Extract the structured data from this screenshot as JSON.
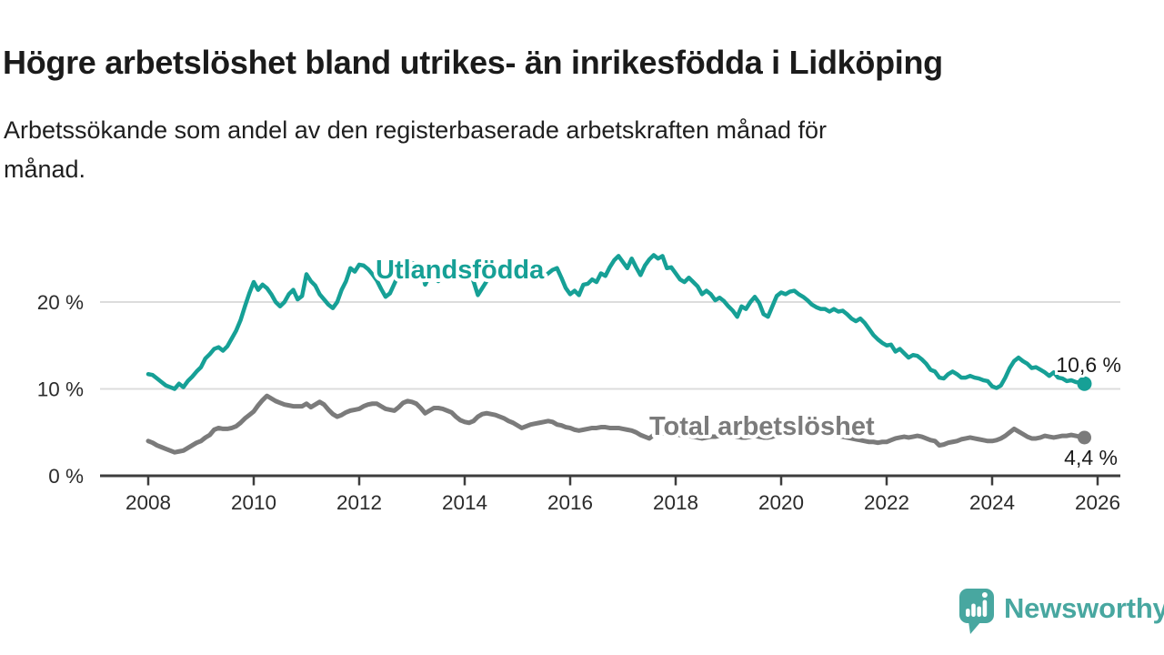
{
  "header": {
    "title": "Högre arbetslöshet bland utrikes- än inrikesfödda i Lidköping",
    "subtitle": "Arbetssökande som andel av den registerbaserade arbetskraften månad för månad.",
    "subtitle_line1": "Arbetssökande som andel av den registerbaserade arbetskraften månad för",
    "subtitle_line2": "månad."
  },
  "branding": {
    "logo_text": "Newsworthy"
  },
  "colors": {
    "background": "#ffffff",
    "series_foreign_born": "#16a096",
    "series_total": "#7b7b7b",
    "grid": "#dcdcdc",
    "axis": "#3d3d3d",
    "tick_label": "#2b2b2b",
    "annotation": "#1b1b1b",
    "logo": "#48a7a0"
  },
  "chart_data": {
    "type": "line",
    "title": "Högre arbetslöshet bland utrikes- än inrikesfödda i Lidköping",
    "subtitle": "Arbetssökande som andel av den registerbaserade arbetskraften månad för månad.",
    "xlabel": "",
    "ylabel": "",
    "frequency": "monthly",
    "start_month": "2008-01",
    "end_month": "2025-10",
    "x_ticks": [
      2008,
      2010,
      2012,
      2014,
      2016,
      2018,
      2020,
      2022,
      2024,
      2026
    ],
    "x_tick_labels": [
      "2008",
      "2010",
      "2012",
      "2014",
      "2016",
      "2018",
      "2020",
      "2022",
      "2024",
      "2026"
    ],
    "y_ticks": [
      0,
      10,
      20
    ],
    "y_tick_labels": [
      "0 %",
      "10 %",
      "20 %"
    ],
    "ylim": [
      0,
      26.5
    ],
    "xlim": [
      2007.09,
      2026.43
    ],
    "grid": "horizontal",
    "legend_position": "inline-labels",
    "series": [
      {
        "name": "Utlandsfödda",
        "color": "#16a096",
        "end_label": "10,6 %",
        "end_value": 10.6,
        "values": [
          11.7,
          11.6,
          11.2,
          10.8,
          10.4,
          10.2,
          10.0,
          10.6,
          10.2,
          10.9,
          11.4,
          12.0,
          12.5,
          13.5,
          14.0,
          14.6,
          14.8,
          14.4,
          14.9,
          15.8,
          16.7,
          17.9,
          19.5,
          21.0,
          22.3,
          21.4,
          22.0,
          21.6,
          20.9,
          20.0,
          19.5,
          20.0,
          20.9,
          21.4,
          20.3,
          20.7,
          23.2,
          22.4,
          21.9,
          20.9,
          20.3,
          19.7,
          19.3,
          20.0,
          21.4,
          22.4,
          23.9,
          23.5,
          24.3,
          24.2,
          23.8,
          23.2,
          22.5,
          21.5,
          20.6,
          21.0,
          22.1,
          23.2,
          24.1,
          24.4,
          24.5,
          24.4,
          24.3,
          22.0,
          23.0,
          23.6,
          22.4,
          22.9,
          23.4,
          23.8,
          24.1,
          24.3,
          24.2,
          23.6,
          22.4,
          20.8,
          21.6,
          22.4,
          23.0,
          23.4,
          23.6,
          23.8,
          24.0,
          24.1,
          24.3,
          24.4,
          24.2,
          23.9,
          23.6,
          23.2,
          22.9,
          23.3,
          23.7,
          23.9,
          22.8,
          21.6,
          20.9,
          21.3,
          20.8,
          22.0,
          22.1,
          22.6,
          22.3,
          23.3,
          23.0,
          24.0,
          24.8,
          25.3,
          24.6,
          23.9,
          25.0,
          24.0,
          23.1,
          24.2,
          24.9,
          25.4,
          25.0,
          25.3,
          23.9,
          24.0,
          23.3,
          22.6,
          22.3,
          22.8,
          22.3,
          21.8,
          20.9,
          21.3,
          20.9,
          20.2,
          20.5,
          20.1,
          19.5,
          19.0,
          18.3,
          19.5,
          19.2,
          20.0,
          20.6,
          19.9,
          18.6,
          18.3,
          19.5,
          20.7,
          21.1,
          20.9,
          21.2,
          21.3,
          20.9,
          20.6,
          20.2,
          19.7,
          19.4,
          19.2,
          19.2,
          18.9,
          19.2,
          18.9,
          19.0,
          18.6,
          18.1,
          17.8,
          18.1,
          17.6,
          16.9,
          16.2,
          15.7,
          15.3,
          15.0,
          15.1,
          14.3,
          14.6,
          14.1,
          13.6,
          13.9,
          13.8,
          13.4,
          12.9,
          12.2,
          12.0,
          11.3,
          11.2,
          11.7,
          12.0,
          11.7,
          11.3,
          11.3,
          11.5,
          11.3,
          11.2,
          11.0,
          10.9,
          10.3,
          10.1,
          10.4,
          11.3,
          12.4,
          13.2,
          13.6,
          13.2,
          12.9,
          12.4,
          12.5,
          12.2,
          11.9,
          11.5,
          11.9,
          11.3,
          11.2,
          10.9,
          11.0,
          10.8,
          10.7,
          10.6
        ]
      },
      {
        "name": "Total arbetslöshet",
        "color": "#7b7b7b",
        "end_label": "4,4 %",
        "end_value": 4.4,
        "values": [
          4.0,
          3.8,
          3.5,
          3.3,
          3.1,
          2.9,
          2.7,
          2.8,
          2.9,
          3.2,
          3.5,
          3.8,
          4.0,
          4.4,
          4.7,
          5.3,
          5.5,
          5.4,
          5.4,
          5.5,
          5.7,
          6.1,
          6.6,
          7.0,
          7.4,
          8.1,
          8.7,
          9.2,
          8.9,
          8.6,
          8.4,
          8.2,
          8.1,
          8.0,
          8.0,
          8.0,
          8.3,
          7.9,
          8.2,
          8.5,
          8.2,
          7.6,
          7.1,
          6.8,
          7.0,
          7.3,
          7.5,
          7.6,
          7.7,
          8.0,
          8.2,
          8.3,
          8.3,
          8.0,
          7.7,
          7.6,
          7.5,
          7.9,
          8.4,
          8.6,
          8.5,
          8.3,
          7.8,
          7.2,
          7.5,
          7.8,
          7.8,
          7.7,
          7.5,
          7.3,
          6.8,
          6.4,
          6.2,
          6.1,
          6.3,
          6.8,
          7.1,
          7.2,
          7.1,
          7.0,
          6.8,
          6.6,
          6.3,
          6.1,
          5.8,
          5.5,
          5.7,
          5.9,
          6.0,
          6.1,
          6.2,
          6.3,
          6.2,
          5.9,
          5.8,
          5.6,
          5.5,
          5.3,
          5.2,
          5.3,
          5.4,
          5.5,
          5.5,
          5.6,
          5.6,
          5.5,
          5.5,
          5.5,
          5.4,
          5.3,
          5.2,
          5.0,
          4.7,
          4.5,
          4.3,
          4.7,
          4.8,
          4.9,
          4.9,
          4.9,
          4.8,
          4.7,
          4.6,
          4.6,
          4.5,
          4.4,
          4.3,
          4.4,
          4.5,
          4.5,
          4.6,
          4.7,
          4.7,
          4.6,
          4.5,
          4.4,
          4.4,
          4.5,
          4.6,
          4.5,
          4.4,
          4.4,
          4.5,
          4.7,
          4.9,
          5.1,
          5.3,
          5.5,
          5.6,
          5.5,
          5.4,
          5.3,
          5.1,
          5.0,
          4.9,
          4.8,
          4.7,
          4.6,
          4.5,
          4.4,
          4.3,
          4.2,
          4.1,
          4.0,
          3.9,
          3.9,
          3.8,
          3.9,
          3.9,
          4.1,
          4.3,
          4.4,
          4.5,
          4.4,
          4.5,
          4.6,
          4.5,
          4.3,
          4.1,
          4.0,
          3.5,
          3.6,
          3.8,
          3.9,
          4.0,
          4.2,
          4.3,
          4.4,
          4.3,
          4.2,
          4.1,
          4.0,
          4.0,
          4.1,
          4.3,
          4.6,
          5.0,
          5.4,
          5.1,
          4.8,
          4.5,
          4.3,
          4.3,
          4.4,
          4.6,
          4.5,
          4.4,
          4.5,
          4.6,
          4.6,
          4.7,
          4.6,
          4.5,
          4.4
        ]
      }
    ]
  }
}
